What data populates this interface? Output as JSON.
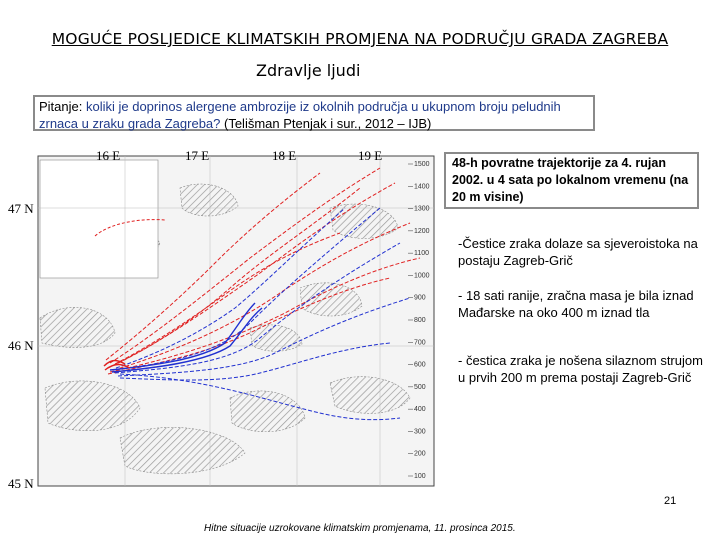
{
  "slide": {
    "title": "MOGUĆE POSLJEDICE KLIMATSKIH PROMJENA NA PODRUČJU GRADA ZAGREBA",
    "subtitle": "Zdravlje ljudi",
    "question_label": "Pitanje:",
    "question_text": " koliki je doprinos alergene ambrozije iz okolnih područja u ukupnom broju peludnih zrnaca u zraku grada Zagreba?",
    "question_citation": "   (Telišman Ptenjak i sur., 2012 – IJB)",
    "info_box": "48-h  povratne trajektorije za 4. rujan 2002. u 4 sata po lokalnom vremenu (na 20 m visine)",
    "bullets": [
      "-Čestice zraka dolaze sa sjeveroistoka na postaju Zagreb-Grič",
      "- 18 sati ranije, zračna masa je bila iznad Mađarske na oko 400 m iznad tla",
      "- čestica zraka je nošena silaznom strujom u prvih 200 m prema postaji Zagreb-Grič"
    ],
    "page_number": "21",
    "footer": "Hitne situacije uzrokovane klimatskim promjenama, 11. prosinca 2015."
  },
  "map": {
    "lon_labels": [
      "16 E",
      "17 E",
      "18 E",
      "19 E"
    ],
    "lat_labels": [
      "47 N",
      "46 N",
      "45 N"
    ],
    "right_scale": [
      "1500",
      "1400",
      "1300",
      "1200",
      "1100",
      "1000",
      "900",
      "800",
      "700",
      "600",
      "500",
      "400",
      "300",
      "200",
      "100"
    ],
    "colors": {
      "red_trajectories": "#e02020",
      "blue_trajectories": "#2030d0",
      "terrain": "#9a9a9a"
    }
  }
}
